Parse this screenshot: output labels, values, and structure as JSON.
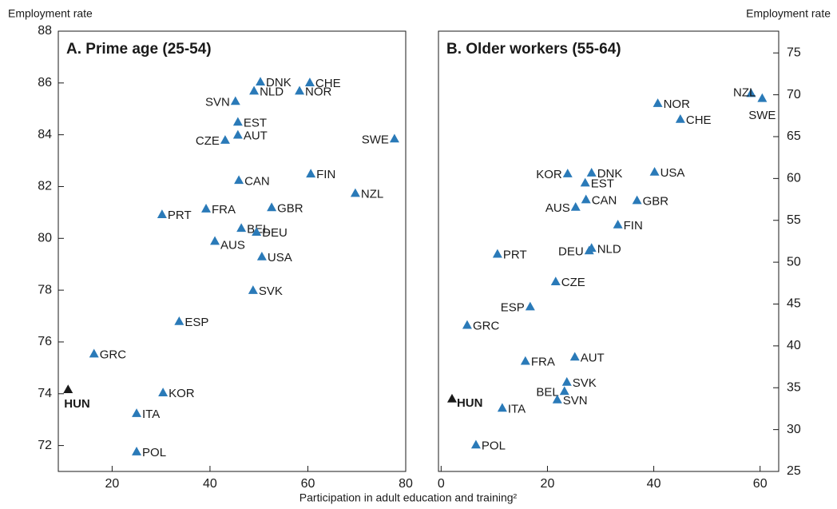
{
  "x_label": "Participation in adult education and training²",
  "chart_data": [
    {
      "type": "scatter",
      "title": "A. Prime age (25-54)",
      "y_label": "Employment rate",
      "labels": [
        "HUN",
        "GRC",
        "ESP",
        "KOR",
        "ITA",
        "POL",
        "PRT",
        "FRA",
        "AUS",
        "BEL",
        "DEU",
        "USA",
        "SVK",
        "GBR",
        "CAN",
        "FIN",
        "NZL",
        "SWE",
        "CZE",
        "AUT",
        "EST",
        "SVN",
        "NLD",
        "DNK",
        "CHE",
        "NOR"
      ],
      "x": [
        11,
        16.3,
        33.7,
        30.4,
        25,
        25,
        30.2,
        39.2,
        41,
        46.4,
        49.5,
        50.6,
        48.8,
        52.6,
        45.9,
        60.6,
        69.7,
        77.7,
        43.1,
        45.7,
        45.7,
        45.2,
        49,
        50.3,
        60.4,
        58.3
      ],
      "values": [
        74.17,
        75.55,
        76.8,
        74.05,
        73.25,
        71.77,
        80.93,
        81.15,
        79.9,
        80.4,
        80.25,
        79.3,
        78,
        81.2,
        82.25,
        82.5,
        81.75,
        83.85,
        83.8,
        84,
        84.5,
        85.3,
        85.7,
        86.05,
        86.02,
        85.7
      ],
      "colors": [
        "#1a1a1a",
        "#2a7ab8",
        "#2a7ab8",
        "#2a7ab8",
        "#2a7ab8",
        "#2a7ab8",
        "#2a7ab8",
        "#2a7ab8",
        "#2a7ab8",
        "#2a7ab8",
        "#2a7ab8",
        "#2a7ab8",
        "#2a7ab8",
        "#2a7ab8",
        "#2a7ab8",
        "#2a7ab8",
        "#2a7ab8",
        "#2a7ab8",
        "#2a7ab8",
        "#2a7ab8",
        "#2a7ab8",
        "#2a7ab8",
        "#2a7ab8",
        "#2a7ab8",
        "#2a7ab8",
        "#2a7ab8"
      ],
      "xlim": [
        9,
        80
      ],
      "xticks": [
        20,
        40,
        60,
        80
      ],
      "ylim": [
        71,
        88
      ],
      "yticks": [
        72,
        74,
        76,
        78,
        80,
        82,
        84,
        86,
        88
      ]
    },
    {
      "type": "scatter",
      "title": "B. Older workers (55-64)",
      "y_label": "Employment rate",
      "labels": [
        "HUN",
        "GRC",
        "ESP",
        "PRT",
        "POL",
        "ITA",
        "FRA",
        "AUT",
        "SVK",
        "BEL",
        "SVN",
        "CZE",
        "DEU",
        "NLD",
        "FIN",
        "AUS",
        "CAN",
        "GBR",
        "EST",
        "KOR",
        "DNK",
        "USA",
        "NOR",
        "CHE",
        "NZL",
        "SWE"
      ],
      "x": [
        2.05,
        4.9,
        16.75,
        10.6,
        6.55,
        11.5,
        15.85,
        25.15,
        23.65,
        23.2,
        21.85,
        21.55,
        27.85,
        28.3,
        33.25,
        25.3,
        27.25,
        36.85,
        27.1,
        23.8,
        28.3,
        40.15,
        40.75,
        45,
        58.3,
        60.4
      ],
      "values": [
        33.7,
        42.5,
        44.7,
        51,
        28.2,
        32.6,
        38.2,
        38.7,
        35.7,
        34.6,
        33.6,
        47.7,
        51.4,
        51.7,
        54.5,
        56.6,
        57.5,
        57.4,
        59.5,
        60.6,
        60.7,
        60.8,
        69,
        67.1,
        70.2,
        69.6
      ],
      "colors": [
        "#1a1a1a",
        "#2a7ab8",
        "#2a7ab8",
        "#2a7ab8",
        "#2a7ab8",
        "#2a7ab8",
        "#2a7ab8",
        "#2a7ab8",
        "#2a7ab8",
        "#2a7ab8",
        "#2a7ab8",
        "#2a7ab8",
        "#2a7ab8",
        "#2a7ab8",
        "#2a7ab8",
        "#2a7ab8",
        "#2a7ab8",
        "#2a7ab8",
        "#2a7ab8",
        "#2a7ab8",
        "#2a7ab8",
        "#2a7ab8",
        "#2a7ab8",
        "#2a7ab8",
        "#2a7ab8",
        "#2a7ab8"
      ],
      "xlim": [
        -0.5,
        63.5
      ],
      "xticks": [
        0,
        20,
        40,
        60
      ],
      "ylim": [
        25,
        77.6
      ],
      "yticks": [
        25,
        30,
        35,
        40,
        45,
        50,
        55,
        60,
        65,
        70,
        75
      ]
    }
  ]
}
